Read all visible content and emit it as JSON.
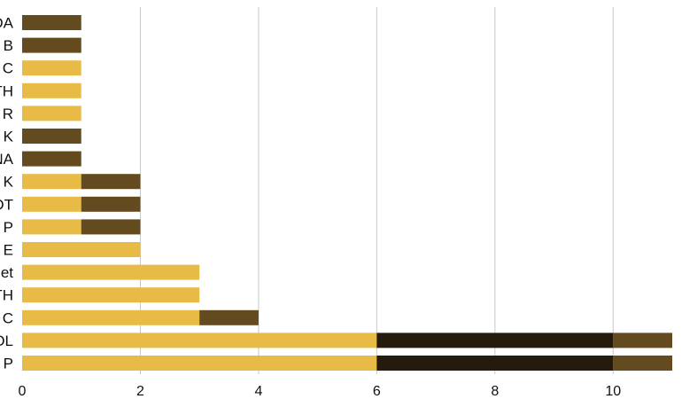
{
  "chart_data": {
    "type": "bar",
    "orientation": "horizontal",
    "stacked": true,
    "categories": [
      "DA",
      "B",
      "C",
      "TH",
      "R",
      "K",
      "NA",
      "K",
      "OT",
      "P",
      "E",
      "et",
      "TH",
      "C",
      "OL",
      "P"
    ],
    "series": [
      {
        "color": "#e8bb46",
        "values": [
          0,
          0,
          1,
          1,
          1,
          0,
          0,
          1,
          1,
          1,
          2,
          3,
          3,
          3,
          6,
          6
        ]
      },
      {
        "color": "#251b0c",
        "values": [
          0,
          0,
          0,
          0,
          0,
          0,
          0,
          0,
          0,
          0,
          0,
          0,
          0,
          0,
          4,
          4
        ]
      },
      {
        "color": "#634a1f",
        "values": [
          1,
          1,
          0,
          0,
          0,
          1,
          1,
          1,
          1,
          1,
          0,
          0,
          0,
          1,
          1,
          1
        ]
      }
    ],
    "xlim": [
      0,
      11
    ],
    "xticks": [
      0,
      2,
      4,
      6,
      8,
      10
    ],
    "xtick_labels": [
      "0",
      "2",
      "4",
      "6",
      "8",
      "10"
    ],
    "grid": "vertical",
    "legend": "none"
  }
}
